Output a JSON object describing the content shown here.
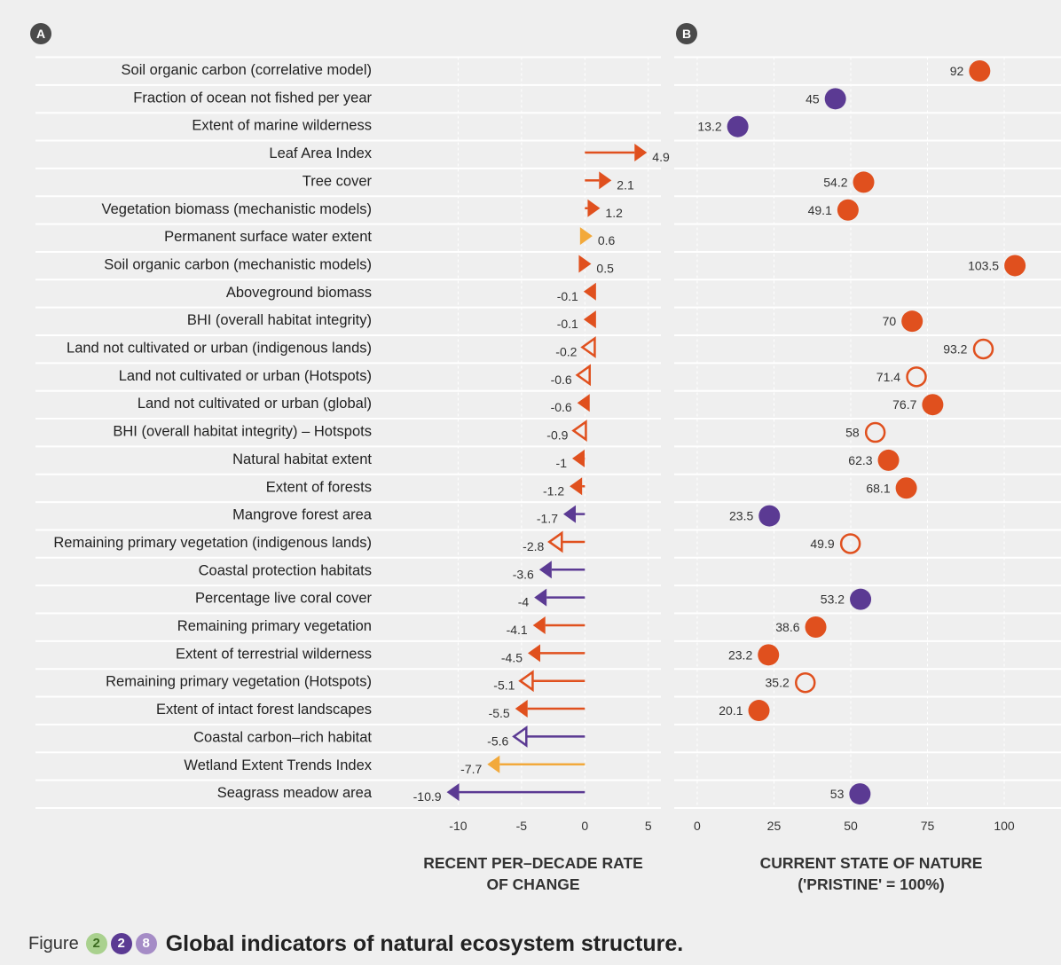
{
  "panel_labels": [
    "A",
    "B"
  ],
  "colors": {
    "orange": "#e0501e",
    "purple": "#5b3a93",
    "yellow": "#f2a93b",
    "badge_green": "#a9d18e",
    "badge_purple": "#5b3a93",
    "badge_lilac": "#a58cc6"
  },
  "chart_data": [
    {
      "type": "arrow",
      "panel": "A",
      "xlabel_line1": "RECENT PER–DECADE RATE",
      "xlabel_line2": "OF CHANGE",
      "xlim": [
        -12.2,
        6.0
      ],
      "xticks": [
        -10,
        -5,
        0,
        5
      ],
      "grid": true,
      "categories": [
        "Soil organic carbon (correlative model)",
        "Fraction of ocean not fished per year",
        "Extent of marine wilderness",
        "Leaf Area Index",
        "Tree cover",
        "Vegetation biomass (mechanistic models)",
        "Permanent surface water extent",
        "Soil organic carbon (mechanistic models)",
        "Aboveground biomass",
        "BHI (overall habitat integrity)",
        "Land not cultivated or urban (indigenous lands)",
        "Land not cultivated or urban (Hotspots)",
        "Land not cultivated or urban (global)",
        "BHI (overall habitat integrity) – Hotspots",
        "Natural habitat extent",
        "Extent of forests",
        "Mangrove forest area",
        "Remaining primary vegetation (indigenous lands)",
        "Coastal protection habitats",
        "Percentage live coral cover",
        "Remaining primary vegetation",
        "Extent of terrestrial wilderness",
        "Remaining primary vegetation (Hotspots)",
        "Extent of intact forest landscapes",
        "Coastal carbon–rich habitat",
        "Wetland Extent Trends Index",
        "Seagrass meadow area"
      ],
      "values": [
        null,
        null,
        null,
        4.9,
        2.1,
        1.2,
        0.6,
        0.5,
        -0.1,
        -0.1,
        -0.2,
        -0.6,
        -0.6,
        -0.9,
        -1,
        -1.2,
        -1.7,
        -2.8,
        -3.6,
        -4,
        -4.1,
        -4.5,
        -5.1,
        -5.5,
        -5.6,
        -7.7,
        -10.9
      ],
      "value_labels": [
        "",
        "",
        "",
        "4.9",
        "2.1",
        "1.2",
        "0.6",
        "0.5",
        "-0.1",
        "-0.1",
        "-0.2",
        "-0.6",
        "-0.6",
        "-0.9",
        "-1",
        "-1.2",
        "-1.7",
        "-2.8",
        "-3.6",
        "-4",
        "-4.1",
        "-4.5",
        "-5.1",
        "-5.5",
        "-5.6",
        "-7.7",
        "-10.9"
      ],
      "colors": [
        "",
        "",
        "",
        "orange",
        "orange",
        "orange",
        "yellow",
        "orange",
        "orange",
        "orange",
        "orange",
        "orange",
        "orange",
        "orange",
        "orange",
        "orange",
        "purple",
        "orange",
        "purple",
        "purple",
        "orange",
        "orange",
        "orange",
        "orange",
        "purple",
        "yellow",
        "purple"
      ],
      "hollow": [
        false,
        false,
        false,
        false,
        false,
        false,
        false,
        false,
        false,
        false,
        true,
        true,
        false,
        true,
        false,
        false,
        false,
        true,
        false,
        false,
        false,
        false,
        true,
        false,
        true,
        false,
        false
      ]
    },
    {
      "type": "dot",
      "panel": "B",
      "xlabel_line1": "CURRENT STATE OF NATURE",
      "xlabel_line2": "('PRISTINE' = 100%)",
      "xlim": [
        -7.5,
        105.2
      ],
      "xticks": [
        0,
        25,
        50,
        75,
        100
      ],
      "grid": true,
      "values": [
        92,
        45,
        13.2,
        null,
        54.2,
        49.1,
        null,
        103.5,
        null,
        70,
        93.2,
        71.4,
        76.7,
        58,
        62.3,
        68.1,
        23.5,
        49.9,
        null,
        53.2,
        38.6,
        23.2,
        35.2,
        20.1,
        null,
        null,
        53
      ],
      "value_labels": [
        "92",
        "45",
        "13.2",
        "",
        "54.2",
        "49.1",
        "",
        "103.5",
        "",
        "70",
        "93.2",
        "71.4",
        "76.7",
        "58",
        "62.3",
        "68.1",
        "23.5",
        "49.9",
        "",
        "53.2",
        "38.6",
        "23.2",
        "35.2",
        "20.1",
        "",
        "",
        "53"
      ],
      "colors": [
        "orange",
        "purple",
        "purple",
        "",
        "orange",
        "orange",
        "",
        "orange",
        "",
        "orange",
        "orange",
        "orange",
        "orange",
        "orange",
        "orange",
        "orange",
        "purple",
        "orange",
        "",
        "purple",
        "orange",
        "orange",
        "orange",
        "orange",
        "",
        "",
        "purple"
      ],
      "hollow": [
        false,
        false,
        false,
        false,
        false,
        false,
        false,
        false,
        false,
        false,
        true,
        true,
        false,
        true,
        false,
        false,
        false,
        true,
        false,
        false,
        false,
        false,
        true,
        false,
        false,
        false,
        false
      ]
    }
  ],
  "caption": {
    "prefix": "Figure",
    "badges": [
      "2",
      "2",
      "8"
    ],
    "title": "Global indicators of natural ecosystem structure."
  }
}
